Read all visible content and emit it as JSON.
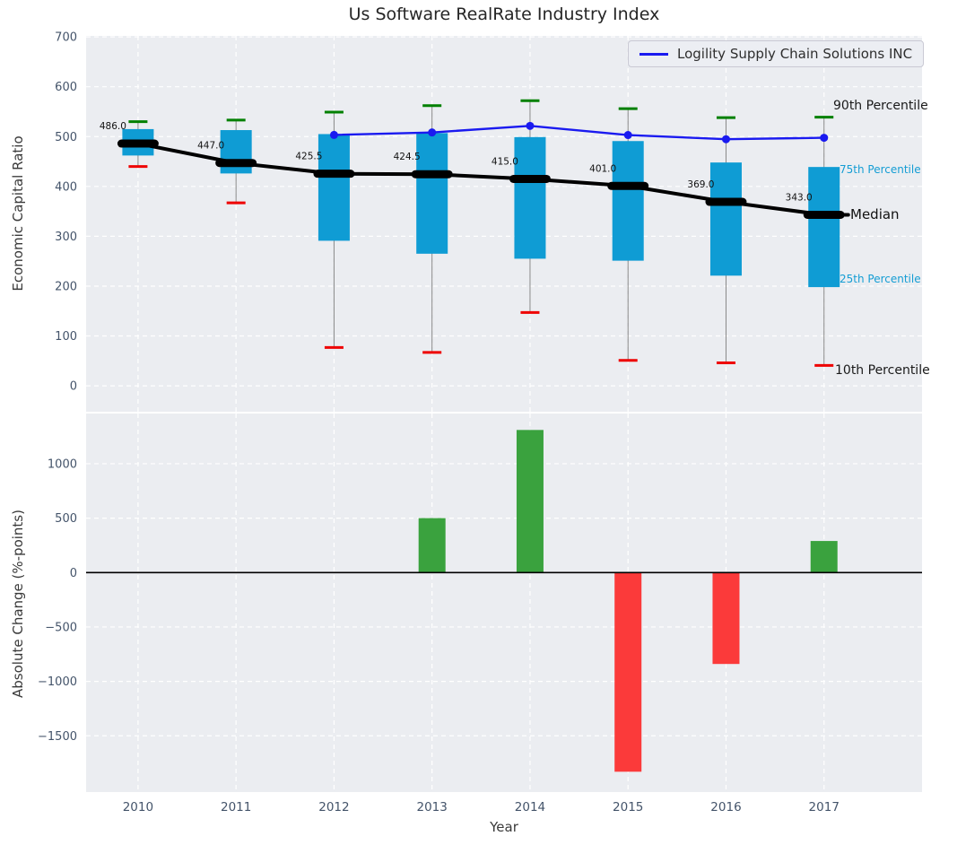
{
  "chart_data": [
    {
      "type": "boxplot+line",
      "title": "Us Software RealRate Industry Index",
      "ylabel": "Economic Capital Ratio",
      "categories": [
        2010,
        2011,
        2012,
        2013,
        2014,
        2015,
        2016,
        2017
      ],
      "xlim": [
        2009.47,
        2018.0
      ],
      "ylim": [
        -52,
        702
      ],
      "yticks": [
        0,
        100,
        200,
        300,
        400,
        500,
        600,
        700
      ],
      "grid": "white-dashed",
      "boxes": [
        {
          "year": 2010,
          "p10": 440,
          "p25": 462,
          "median": 486.0,
          "p75": 515,
          "p90": 530
        },
        {
          "year": 2011,
          "p10": 367,
          "p25": 426,
          "median": 447.0,
          "p75": 513,
          "p90": 533
        },
        {
          "year": 2012,
          "p10": 77,
          "p25": 291,
          "median": 425.5,
          "p75": 505,
          "p90": 549
        },
        {
          "year": 2013,
          "p10": 67,
          "p25": 265,
          "median": 424.5,
          "p75": 507,
          "p90": 562
        },
        {
          "year": 2014,
          "p10": 147,
          "p25": 255,
          "median": 415.0,
          "p75": 499,
          "p90": 572
        },
        {
          "year": 2015,
          "p10": 51,
          "p25": 251,
          "median": 401.0,
          "p75": 491,
          "p90": 556
        },
        {
          "year": 2016,
          "p10": 46,
          "p25": 221,
          "median": 369.0,
          "p75": 448,
          "p90": 538
        },
        {
          "year": 2017,
          "p10": 41,
          "p25": 198,
          "median": 343.0,
          "p75": 439,
          "p90": 539
        }
      ],
      "median_labels": [
        "486.0",
        "447.0",
        "425.5",
        "424.5",
        "415.0",
        "401.0",
        "369.0",
        "343.0"
      ],
      "company_series": {
        "name": "Logility Supply Chain Solutions INC",
        "x": [
          2012,
          2013,
          2014,
          2015,
          2016,
          2017
        ],
        "values": [
          503.3,
          508.3,
          521.4,
          503.1,
          494.7,
          497.6
        ],
        "color": "#1a1af0"
      },
      "annotations": {
        "p90": "90th Percentile",
        "p75": "75th Percentile",
        "median": "Median",
        "p25": "25th Percentile",
        "p10": "10th Percentile"
      },
      "colors": {
        "box_fill": "#0f9cd4",
        "whisker_line": "#888888",
        "cap_high": "#008000",
        "cap_low": "#ee0000",
        "median_line": "#000000",
        "plot_bg": "#ebedf1",
        "tick_label": "#44546a"
      },
      "legend_position": "upper-right"
    },
    {
      "type": "bar",
      "ylabel": "Absolute Change (%-points)",
      "xlabel": "Year",
      "x": [
        2013,
        2014,
        2015,
        2016,
        2017
      ],
      "values": [
        500,
        1310,
        -1830,
        -840,
        290
      ],
      "xticks": [
        2010,
        2011,
        2012,
        2013,
        2014,
        2015,
        2016,
        2017
      ],
      "xlim": [
        2009.47,
        2018.0
      ],
      "ylim": [
        -2017,
        1461
      ],
      "yticks": [
        -1500,
        -1000,
        -500,
        0,
        500,
        1000
      ],
      "grid": "white-dashed",
      "zero_line": true,
      "colors": {
        "positive": "#3aa23e",
        "negative": "#fb3a3a",
        "plot_bg": "#ebedf1",
        "tick_label": "#44546a"
      }
    }
  ]
}
